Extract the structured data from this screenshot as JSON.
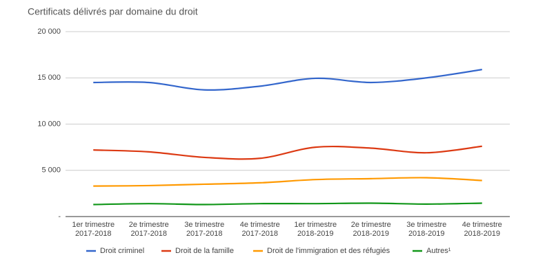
{
  "chart_data": {
    "type": "line",
    "title": "Certificats délivrés par domaine du droit",
    "categories": [
      [
        "1er trimestre",
        "2017-2018"
      ],
      [
        "2e trimestre",
        "2017-2018"
      ],
      [
        "3e trimestre",
        "2017-2018"
      ],
      [
        "4e trimestre",
        "2017-2018"
      ],
      [
        "1er trimestre",
        "2018-2019"
      ],
      [
        "2e trimestre",
        "2018-2019"
      ],
      [
        "3e trimestre",
        "2018-2019"
      ],
      [
        "4e trimestre",
        "2018-2019"
      ]
    ],
    "series": [
      {
        "name": "Droit criminel",
        "color": "#3366cc",
        "values": [
          14500,
          14500,
          13700,
          14100,
          14950,
          14500,
          15000,
          15900
        ]
      },
      {
        "name": "Droit de la famille",
        "color": "#dc3912",
        "values": [
          7200,
          7000,
          6400,
          6300,
          7500,
          7400,
          6900,
          7600
        ]
      },
      {
        "name": "Droit de l'immigration et des réfugiés",
        "color": "#ff9900",
        "values": [
          3300,
          3350,
          3500,
          3650,
          4000,
          4100,
          4200,
          3900
        ]
      },
      {
        "name": "Autres¹",
        "color": "#109618",
        "values": [
          1300,
          1400,
          1300,
          1400,
          1400,
          1450,
          1350,
          1450
        ]
      }
    ],
    "ylim": [
      0,
      20000
    ],
    "yticks": [
      {
        "value": 0,
        "label": "-"
      },
      {
        "value": 5000,
        "label": "5 000"
      },
      {
        "value": 10000,
        "label": "10 000"
      },
      {
        "value": 15000,
        "label": "15 000"
      },
      {
        "value": 20000,
        "label": "20 000"
      }
    ],
    "grid": true,
    "legend": "bottom"
  }
}
